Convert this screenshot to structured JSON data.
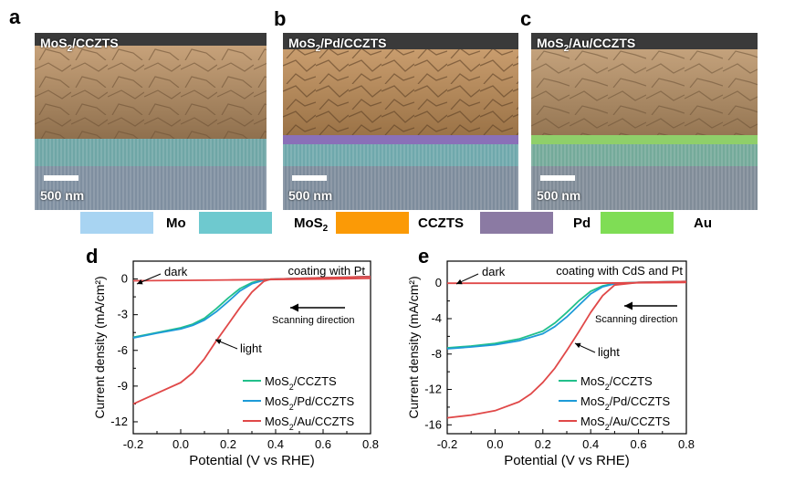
{
  "panels": {
    "a": {
      "letter": "a",
      "title": "MoS2/CCZTS",
      "title_main": "MoS",
      "title_sub": "2",
      "title_rest": "/CCZTS",
      "scale": "500 nm"
    },
    "b": {
      "letter": "b",
      "title": "MoS2/Pd/CCZTS",
      "title_main": "MoS",
      "title_sub": "2",
      "title_rest": "/Pd/CCZTS",
      "scale": "500 nm"
    },
    "c": {
      "letter": "c",
      "title": "MoS2/Au/CCZTS",
      "title_main": "MoS",
      "title_sub": "2",
      "title_rest": "/Au/CCZTS",
      "scale": "500 nm"
    }
  },
  "layer_legend": [
    {
      "label": "Mo",
      "color": "#a8d4f2"
    },
    {
      "label": "MoS",
      "sub": "2",
      "color": "#6ec9cf"
    },
    {
      "label": "CCZTS",
      "color": "#fb9a06"
    },
    {
      "label": "Pd",
      "color": "#8b7aa3"
    },
    {
      "label": "Au",
      "color": "#7fdd55"
    }
  ],
  "colors": {
    "green": "#22c08a",
    "blue": "#1d9bd8",
    "red": "#e04848"
  },
  "chart_data": [
    {
      "panel": "d",
      "type": "line",
      "xlabel": "Potential (V vs RHE)",
      "ylabel": "Current density (mA/cm²)",
      "xlim": [
        -0.2,
        0.8
      ],
      "ylim": [
        -13,
        1.5
      ],
      "xticks": [
        "-0.2",
        "0.0",
        "0.2",
        "0.4",
        "0.6",
        "0.8"
      ],
      "yticks": [
        "0",
        "-3",
        "-6",
        "-9",
        "-12"
      ],
      "annotation": "coating with Pt",
      "dark_label": "dark",
      "light_label": "light",
      "scan_label": "Scanning direction",
      "series": [
        {
          "name": "MoS2/CCZTS",
          "name_main": "MoS",
          "name_sub": "2",
          "name_rest": "/CCZTS",
          "color": "#22c08a",
          "x": [
            -0.2,
            -0.1,
            0.0,
            0.05,
            0.1,
            0.15,
            0.2,
            0.25,
            0.3,
            0.35,
            0.4,
            0.5,
            0.6,
            0.7,
            0.8
          ],
          "y": [
            -4.9,
            -4.5,
            -4.1,
            -3.8,
            -3.3,
            -2.5,
            -1.6,
            -0.8,
            -0.3,
            -0.05,
            0.0,
            0.05,
            0.1,
            0.15,
            0.2
          ]
        },
        {
          "name": "MoS2/Pd/CCZTS",
          "name_main": "MoS",
          "name_sub": "2",
          "name_rest": "/Pd/CCZTS",
          "color": "#1d9bd8",
          "x": [
            -0.2,
            -0.1,
            0.0,
            0.05,
            0.1,
            0.15,
            0.2,
            0.25,
            0.3,
            0.35,
            0.4,
            0.5,
            0.6,
            0.7,
            0.8
          ],
          "y": [
            -4.95,
            -4.55,
            -4.2,
            -3.9,
            -3.45,
            -2.75,
            -1.9,
            -1.0,
            -0.4,
            -0.1,
            0.0,
            0.05,
            0.1,
            0.15,
            0.2
          ]
        },
        {
          "name": "MoS2/Au/CCZTS",
          "name_main": "MoS",
          "name_sub": "2",
          "name_rest": "/Au/CCZTS",
          "color": "#e04848",
          "x": [
            -0.2,
            -0.1,
            0.0,
            0.05,
            0.1,
            0.15,
            0.2,
            0.25,
            0.3,
            0.35,
            0.38,
            0.4,
            0.5,
            0.6,
            0.7,
            0.8
          ],
          "y": [
            -10.5,
            -9.6,
            -8.7,
            -7.9,
            -6.7,
            -5.2,
            -3.8,
            -2.4,
            -1.1,
            -0.2,
            0.0,
            0.0,
            0.05,
            0.1,
            0.15,
            0.2
          ]
        },
        {
          "name": "dark",
          "color": "#e04848",
          "legend": false,
          "x": [
            -0.2,
            0.0,
            0.2,
            0.4,
            0.6,
            0.8
          ],
          "y": [
            -0.15,
            -0.12,
            -0.08,
            -0.04,
            0.0,
            0.05
          ]
        }
      ]
    },
    {
      "panel": "e",
      "type": "line",
      "xlabel": "Potential (V vs RHE)",
      "ylabel": "Current density (mA/cm²)",
      "xlim": [
        -0.2,
        0.8
      ],
      "ylim": [
        -17,
        2.5
      ],
      "xticks": [
        "-0.2",
        "0.0",
        "0.2",
        "0.4",
        "0.6",
        "0.8"
      ],
      "yticks": [
        "0",
        "-4",
        "-8",
        "-12",
        "-16"
      ],
      "annotation": "coating with CdS and Pt",
      "dark_label": "dark",
      "light_label": "light",
      "scan_label": "Scanning direction",
      "series": [
        {
          "name": "MoS2/CCZTS",
          "name_main": "MoS",
          "name_sub": "2",
          "name_rest": "/CCZTS",
          "color": "#22c08a",
          "x": [
            -0.2,
            -0.1,
            0.0,
            0.1,
            0.2,
            0.25,
            0.3,
            0.35,
            0.4,
            0.45,
            0.5,
            0.6,
            0.7,
            0.8
          ],
          "y": [
            -7.3,
            -7.1,
            -6.8,
            -6.3,
            -5.4,
            -4.5,
            -3.3,
            -2.0,
            -0.9,
            -0.3,
            0.0,
            0.1,
            0.15,
            0.2
          ]
        },
        {
          "name": "MoS2/Pd/CCZTS",
          "name_main": "MoS",
          "name_sub": "2",
          "name_rest": "/Pd/CCZTS",
          "color": "#1d9bd8",
          "x": [
            -0.2,
            -0.1,
            0.0,
            0.1,
            0.2,
            0.25,
            0.3,
            0.35,
            0.4,
            0.45,
            0.5,
            0.6,
            0.7,
            0.8
          ],
          "y": [
            -7.4,
            -7.2,
            -6.95,
            -6.5,
            -5.7,
            -4.9,
            -3.8,
            -2.5,
            -1.2,
            -0.4,
            -0.05,
            0.1,
            0.15,
            0.2
          ]
        },
        {
          "name": "MoS2/Au/CCZTS",
          "name_main": "MoS",
          "name_sub": "2",
          "name_rest": "/Au/CCZTS",
          "color": "#e04848",
          "x": [
            -0.2,
            -0.1,
            0.0,
            0.1,
            0.15,
            0.2,
            0.25,
            0.3,
            0.35,
            0.4,
            0.45,
            0.5,
            0.6,
            0.7,
            0.8
          ],
          "y": [
            -15.2,
            -14.9,
            -14.4,
            -13.4,
            -12.5,
            -11.2,
            -9.6,
            -7.6,
            -5.5,
            -3.3,
            -1.4,
            -0.2,
            0.1,
            0.15,
            0.2
          ]
        },
        {
          "name": "dark",
          "color": "#e04848",
          "legend": false,
          "x": [
            -0.2,
            0.0,
            0.2,
            0.4,
            0.6,
            0.8
          ],
          "y": [
            0.0,
            0.0,
            0.0,
            0.0,
            0.05,
            0.1
          ]
        }
      ]
    }
  ]
}
